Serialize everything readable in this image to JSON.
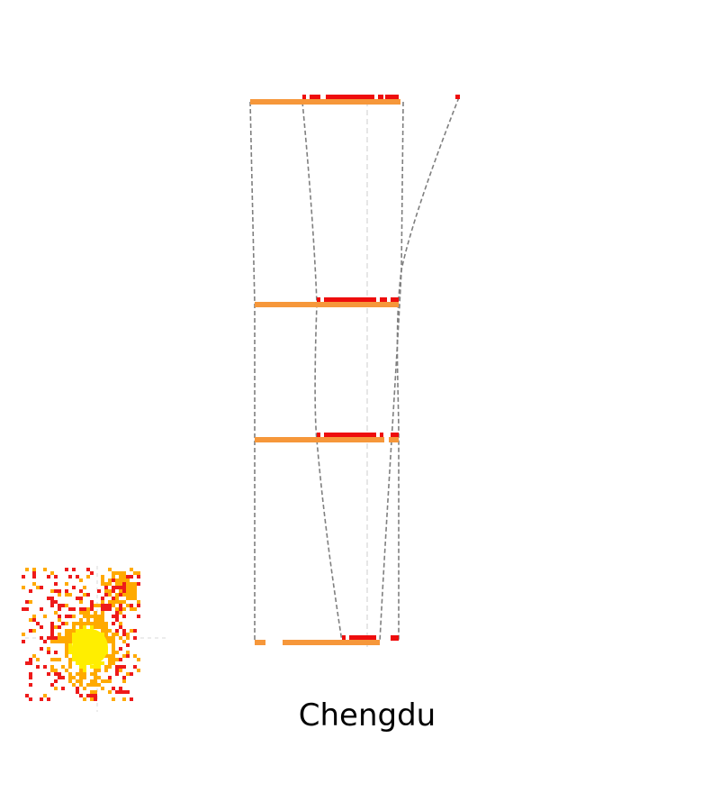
{
  "title": "Chengdu",
  "colors": {
    "background": "#ffffff",
    "base_bar": "#f6973a",
    "highlight": "#ee0d0d",
    "connector": "#7f7f7f",
    "center_axis": "#cccccc",
    "map_core": "#ffee00",
    "map_mid": "#ffaa00",
    "map_edge": "#ee1a1a",
    "label": "#000000"
  }
}
